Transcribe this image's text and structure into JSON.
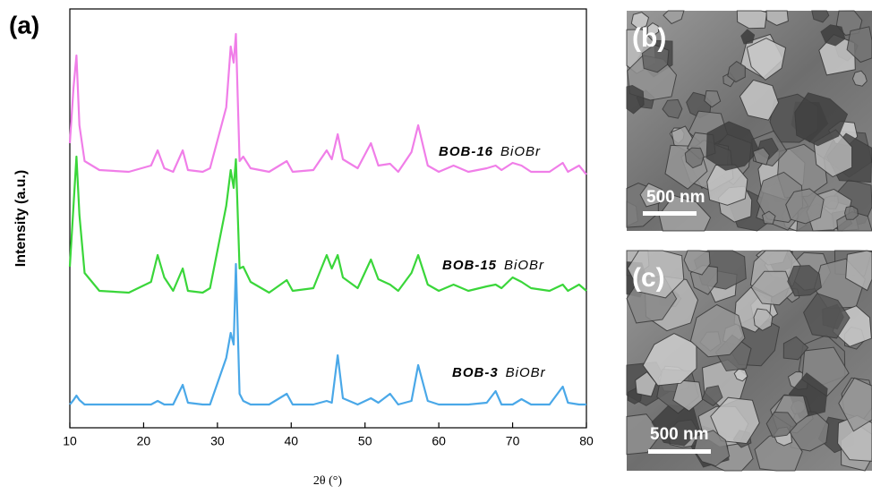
{
  "chart_data": {
    "type": "line",
    "panel_label": "(a)",
    "x_label": "2θ (°)",
    "y_label": "Intensity (a.u.)",
    "x": [
      10,
      10.5,
      10.9,
      11.3,
      12,
      14,
      18,
      21,
      21.9,
      22.8,
      24,
      25.3,
      26,
      28,
      29,
      31.2,
      31.8,
      32.2,
      32.5,
      33,
      33.5,
      34.5,
      37,
      39.4,
      40.2,
      43,
      44.8,
      45.5,
      46.3,
      47,
      49,
      50.8,
      51.8,
      53.4,
      54.5,
      56.3,
      57.2,
      58.5,
      60,
      62,
      64,
      66.5,
      67.7,
      68.5,
      70,
      71.2,
      72.5,
      75,
      76.8,
      77.5,
      79,
      80
    ],
    "series": [
      {
        "name": "BOB-16",
        "phase": "BiOBr",
        "color": "#f07ee8",
        "values": [
          318,
          380,
          416,
          338,
          298,
          288,
          286,
          293,
          310,
          290,
          286,
          310,
          288,
          286,
          290,
          358,
          426,
          408,
          440,
          298,
          303,
          290,
          286,
          298,
          286,
          288,
          310,
          300,
          328,
          300,
          290,
          318,
          293,
          295,
          286,
          308,
          338,
          293,
          286,
          293,
          286,
          290,
          293,
          288,
          296,
          293,
          286,
          286,
          296,
          286,
          293,
          283
        ]
      },
      {
        "name": "BOB-15",
        "phase": "BiOBr",
        "color": "#3ad63a",
        "values": [
          180,
          248,
          303,
          238,
          173,
          153,
          151,
          163,
          193,
          168,
          153,
          178,
          153,
          151,
          156,
          248,
          288,
          268,
          300,
          178,
          180,
          163,
          151,
          165,
          153,
          156,
          193,
          178,
          193,
          168,
          156,
          188,
          166,
          160,
          153,
          173,
          193,
          160,
          153,
          160,
          153,
          158,
          160,
          156,
          168,
          163,
          156,
          153,
          160,
          153,
          160,
          153
        ]
      },
      {
        "name": "BOB-3",
        "phase": "BiOBr",
        "color": "#4aa8e8",
        "values": [
          26,
          31,
          36,
          31,
          26,
          26,
          26,
          26,
          30,
          26,
          26,
          48,
          28,
          26,
          26,
          78,
          106,
          93,
          183,
          38,
          30,
          26,
          26,
          38,
          26,
          26,
          30,
          28,
          81,
          33,
          26,
          33,
          28,
          38,
          26,
          30,
          70,
          30,
          26,
          26,
          26,
          28,
          41,
          26,
          26,
          32,
          26,
          26,
          46,
          28,
          26,
          26
        ]
      }
    ],
    "xlim": [
      10,
      80
    ],
    "xticks": [
      10,
      20,
      30,
      40,
      50,
      60,
      70,
      80
    ],
    "ylim": [
      0,
      468
    ]
  },
  "images": [
    {
      "label": "(b)",
      "scale_bar": "500 nm"
    },
    {
      "label": "(c)",
      "scale_bar": "500 nm"
    }
  ]
}
